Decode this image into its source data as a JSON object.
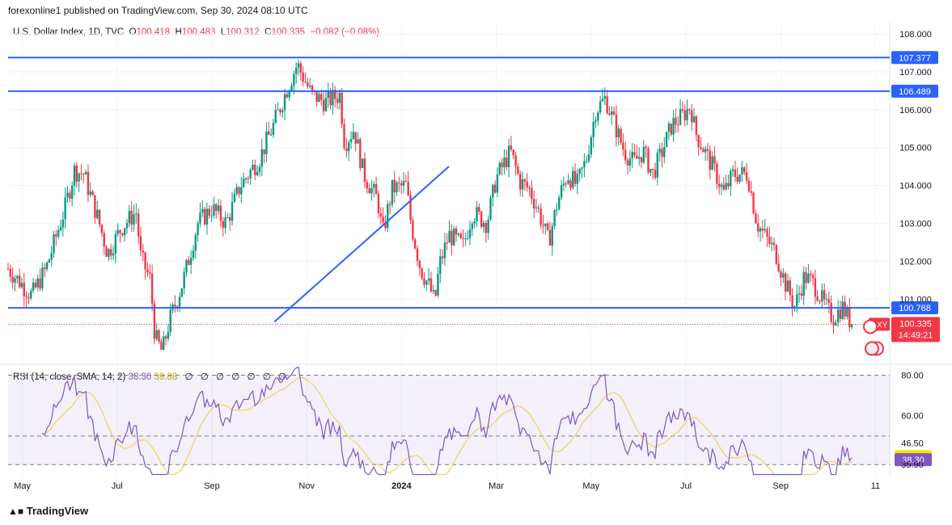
{
  "header": "forexonline1 published on TradingView.com, Sep 30, 2024 08:10 UTC",
  "legend": {
    "symbol": "U.S. Dollar Index, 1D, TVC",
    "o_label": "O",
    "o": "100.418",
    "h_label": "H",
    "h": "100.483",
    "l_label": "L",
    "l": "100.312",
    "c_label": "C",
    "c": "100.335",
    "change": "−0.082 (−0.08%)"
  },
  "rsi_legend": {
    "label": "RSI (14, close, SMA, 14, 2)",
    "rsi": "38.30",
    "sma": "39.88",
    "icons": [
      "∅",
      "∅",
      "∅",
      "∅",
      "∅",
      "∅",
      "∅"
    ]
  },
  "brand": "TradingView",
  "colors": {
    "up": "#089981",
    "down": "#f23645",
    "level": "#2962ff",
    "rsi": "#7e57c2",
    "rsi_sma": "#f0d35a",
    "band": "#7e57c2"
  },
  "chart_data": {
    "type": "candlestick",
    "title": "U.S. Dollar Index, 1D, TVC",
    "price_axis": {
      "range": [
        99.3,
        108.3
      ],
      "ticks": [
        "108.000",
        "107.000",
        "106.000",
        "105.000",
        "104.000",
        "103.000",
        "102.000",
        "101.000"
      ]
    },
    "horizontal_levels": [
      {
        "name": "resistance-upper",
        "value": 107.377,
        "label": "107.377"
      },
      {
        "name": "resistance-lower",
        "value": 106.489,
        "label": "106.489"
      },
      {
        "name": "support",
        "value": 100.768,
        "label": "100.768"
      }
    ],
    "trendline": {
      "from": {
        "x": 5.62,
        "y": 100.4
      },
      "to": {
        "x": 9.3,
        "y": 104.5
      }
    },
    "last_price": {
      "value": 100.335,
      "label": "100.335",
      "countdown": "14:49:21",
      "symbol": "DXY"
    },
    "x_axis": {
      "labels": [
        {
          "text": "May",
          "x": 0.3
        },
        {
          "text": "Jul",
          "x": 2.3
        },
        {
          "text": "Sep",
          "x": 4.3
        },
        {
          "text": "Nov",
          "x": 6.3
        },
        {
          "text": "2024",
          "x": 8.3,
          "bold": true
        },
        {
          "text": "Mar",
          "x": 10.3
        },
        {
          "text": "May",
          "x": 12.3
        },
        {
          "text": "Jul",
          "x": 14.3
        },
        {
          "text": "Sep",
          "x": 16.3
        },
        {
          "text": "11",
          "x": 18.3
        }
      ]
    },
    "price_path": [
      [
        0,
        101.8
      ],
      [
        0.5,
        101.1
      ],
      [
        0.8,
        101.8
      ],
      [
        1.2,
        103.4
      ],
      [
        1.4,
        104.4
      ],
      [
        1.6,
        104.3
      ],
      [
        1.9,
        103.1
      ],
      [
        2.1,
        102.2
      ],
      [
        2.4,
        102.9
      ],
      [
        2.7,
        103.3
      ],
      [
        2.8,
        102.1
      ],
      [
        3.0,
        101.5
      ],
      [
        3.1,
        100.0
      ],
      [
        3.25,
        99.6
      ],
      [
        3.4,
        100.4
      ],
      [
        3.7,
        101.5
      ],
      [
        4.0,
        103.0
      ],
      [
        4.3,
        103.4
      ],
      [
        4.6,
        103.0
      ],
      [
        4.9,
        104.0
      ],
      [
        5.3,
        104.7
      ],
      [
        5.6,
        105.6
      ],
      [
        5.9,
        106.6
      ],
      [
        6.1,
        107.2
      ],
      [
        6.4,
        106.4
      ],
      [
        6.7,
        106.2
      ],
      [
        7.0,
        106.4
      ],
      [
        7.1,
        105.1
      ],
      [
        7.3,
        105.5
      ],
      [
        7.5,
        104.3
      ],
      [
        7.8,
        103.6
      ],
      [
        7.9,
        102.7
      ],
      [
        8.1,
        103.9
      ],
      [
        8.4,
        104.0
      ],
      [
        8.5,
        103.0
      ],
      [
        8.7,
        101.8
      ],
      [
        8.9,
        101.3
      ],
      [
        9.0,
        100.9
      ],
      [
        9.1,
        101.9
      ],
      [
        9.3,
        102.7
      ],
      [
        9.6,
        102.4
      ],
      [
        9.8,
        103.3
      ],
      [
        10.1,
        103.0
      ],
      [
        10.3,
        104.2
      ],
      [
        10.6,
        104.9
      ],
      [
        10.8,
        104.1
      ],
      [
        11.0,
        103.9
      ],
      [
        11.2,
        103.3
      ],
      [
        11.4,
        102.5
      ],
      [
        11.6,
        103.6
      ],
      [
        11.8,
        104.3
      ],
      [
        12.0,
        104.0
      ],
      [
        12.2,
        104.7
      ],
      [
        12.4,
        106.0
      ],
      [
        12.6,
        106.3
      ],
      [
        12.8,
        105.6
      ],
      [
        13.0,
        104.9
      ],
      [
        13.2,
        104.6
      ],
      [
        13.4,
        104.9
      ],
      [
        13.6,
        104.3
      ],
      [
        13.8,
        104.9
      ],
      [
        14.0,
        105.6
      ],
      [
        14.2,
        105.8
      ],
      [
        14.4,
        106.1
      ],
      [
        14.5,
        105.4
      ],
      [
        14.7,
        104.9
      ],
      [
        14.9,
        104.4
      ],
      [
        15.1,
        103.8
      ],
      [
        15.3,
        104.3
      ],
      [
        15.6,
        104.3
      ],
      [
        15.8,
        103.0
      ],
      [
        16.0,
        102.6
      ],
      [
        16.2,
        102.2
      ],
      [
        16.4,
        101.4
      ],
      [
        16.6,
        100.8
      ],
      [
        16.8,
        101.6
      ],
      [
        17.0,
        101.4
      ],
      [
        17.2,
        100.9
      ],
      [
        17.4,
        100.5
      ],
      [
        17.6,
        100.8
      ],
      [
        17.8,
        100.335
      ]
    ],
    "rsi": {
      "range": [
        30,
        85
      ],
      "levels": [
        "80.00",
        "60.00",
        "46.50",
        "39.88",
        "38.30",
        "35.90"
      ],
      "band_upper": 80,
      "band_mid": 50,
      "band_lower": 35.9,
      "current": "38.30",
      "sma": "39.88"
    }
  }
}
